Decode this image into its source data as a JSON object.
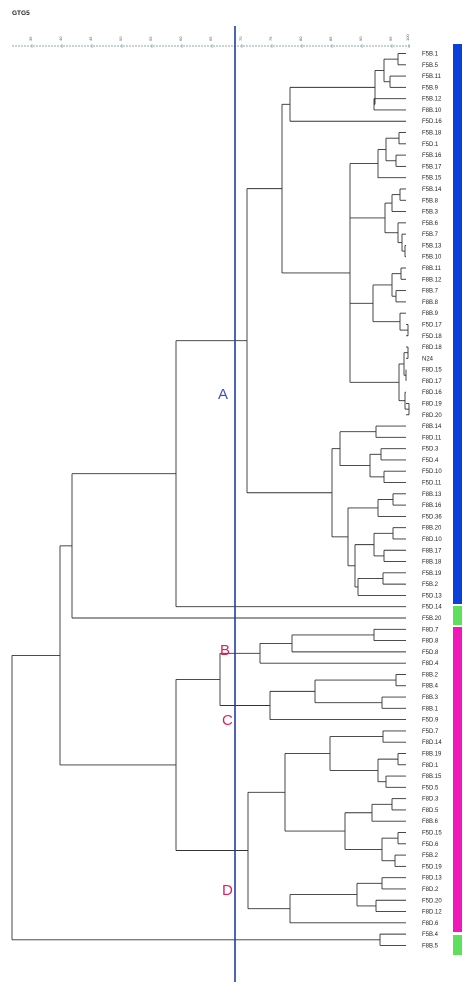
{
  "title": "GTG5",
  "scale_ticks": [
    "35",
    "40",
    "45",
    "50",
    "55",
    "60",
    "65",
    "70",
    "75",
    "80",
    "85",
    "90",
    "95",
    "100"
  ],
  "leaves": [
    "F5B.1",
    "F5B.5",
    "F5B.11",
    "F5B.9",
    "F5B.12",
    "F8B.10",
    "F5D.16",
    "F5B.18",
    "F5D.1",
    "F5B.16",
    "F5B.17",
    "F5B.15",
    "F5B.14",
    "F5B.8",
    "F5B.3",
    "F5B.6",
    "F5B.7",
    "F5B.13",
    "F5B.10",
    "F8B.11",
    "F8B.12",
    "F8B.7",
    "F8B.8",
    "F8B.9",
    "F5D.17",
    "F5D.18",
    "F8D.18",
    "N24",
    "F8D.15",
    "F8D.17",
    "F8D.16",
    "F8D.19",
    "F8D.20",
    "F8B.14",
    "F8D.11",
    "F5D.3",
    "F5D.4",
    "F5D.10",
    "F5D.11",
    "F8B.13",
    "F8B.16",
    "F5D.36",
    "F8B.20",
    "F8D.10",
    "F8B.17",
    "F8B.18",
    "F5B.19",
    "F5B.2",
    "F5D.13",
    "F5D.14",
    "F5B.20",
    "F8D.7",
    "F8D.8",
    "F5D.8",
    "F8D.4",
    "F8B.2",
    "F8B.4",
    "F8B.3",
    "F8B.1",
    "F5D.9",
    "F5D.7",
    "F8D.14",
    "F8B.19",
    "F8D.1",
    "F8B.15",
    "F5D.5",
    "F8D.3",
    "F8D.5",
    "F8B.6",
    "F5D.15",
    "F5D.6",
    "F5B.2",
    "F5D.19",
    "F8D.13",
    "F8D.2",
    "F5D.20",
    "F8D.12",
    "F8D.6",
    "F5B.4",
    "F8B.5"
  ],
  "cluster_labels": [
    {
      "text": "A",
      "color": "#3a4fc4"
    },
    {
      "text": "B",
      "color": "#e0205a"
    },
    {
      "text": "C",
      "color": "#e0205a"
    },
    {
      "text": "D",
      "color": "#e0205a"
    }
  ],
  "colors": {
    "tree": "#333333",
    "cutoff": "#1f3ea8",
    "blue": "#0a3fd8",
    "green": "#5ee05e",
    "magenta": "#f018b8",
    "axis": "#6a8a9a"
  }
}
